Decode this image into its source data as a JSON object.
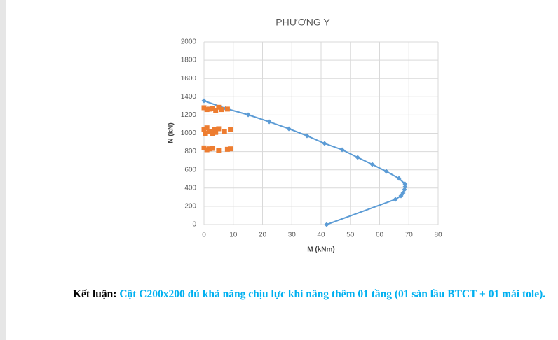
{
  "chart_data": {
    "type": "scatter",
    "title": "PHƯƠNG Y",
    "xlabel": "M (kNm)",
    "ylabel": "N (kN)",
    "xlim": [
      0,
      80
    ],
    "xticks": [
      0,
      10,
      20,
      30,
      40,
      50,
      60,
      70,
      80
    ],
    "ylim": [
      0,
      2000
    ],
    "yticks": [
      0,
      200,
      400,
      600,
      800,
      1000,
      1200,
      1400,
      1600,
      1800,
      2000
    ],
    "grid": true,
    "series": [
      {
        "color": "#5b9bd5",
        "marker": "diamond",
        "lines": true,
        "x": [
          0,
          7.4,
          15.1,
          22.3,
          29,
          35.2,
          41.2,
          47.2,
          52.5,
          57.5,
          62.3,
          66.6,
          68.7,
          68.7,
          68.5,
          68,
          67.3,
          65.4,
          41.9
        ],
        "values": [
          1356,
          1272,
          1203,
          1126,
          1050,
          973,
          889,
          820,
          736,
          659,
          582,
          506,
          444,
          414,
          383,
          345,
          314,
          276,
          0
        ]
      },
      {
        "color": "#ed7d31",
        "marker": "square",
        "lines": false,
        "x": [
          0,
          1,
          2,
          3,
          4,
          5,
          6,
          8,
          0,
          0.5,
          1,
          2,
          3,
          3.5,
          4,
          5,
          7,
          9,
          0,
          1,
          2,
          3,
          5,
          8,
          9
        ],
        "values": [
          1280,
          1260,
          1265,
          1270,
          1250,
          1285,
          1260,
          1265,
          1040,
          1000,
          1060,
          1020,
          1000,
          1040,
          1010,
          1050,
          1020,
          1040,
          840,
          820,
          830,
          835,
          815,
          825,
          830
        ]
      }
    ]
  },
  "conclusion": {
    "label": "Kết luận:",
    "text": "Cột C200x200 đủ khả năng chịu lực khi nâng thêm 01 tầng (01 sàn lầu BTCT + 01 mái tole)."
  }
}
